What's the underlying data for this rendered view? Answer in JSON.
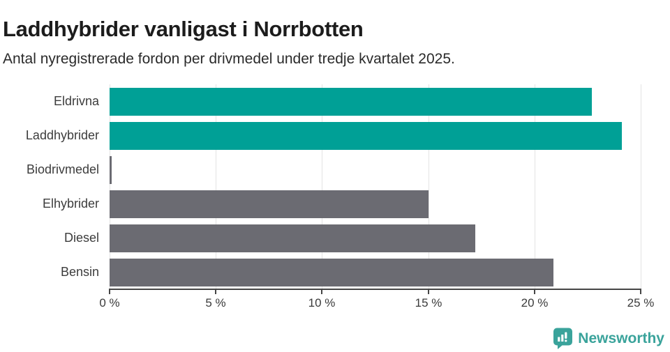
{
  "chart_data": {
    "type": "bar",
    "orientation": "horizontal",
    "title": "Laddhybrider vanligast i Norrbotten",
    "subtitle": "Antal nyregistrerade fordon per drivmedel under tredje kvartalet 2025.",
    "categories": [
      "Eldrivna",
      "Laddhybrider",
      "Biodrivmedel",
      "Elhybrider",
      "Diesel",
      "Bensin"
    ],
    "values": [
      22.7,
      24.1,
      0.1,
      15.0,
      17.2,
      20.9
    ],
    "unit": "%",
    "xlim": [
      0,
      25
    ],
    "xticks": [
      0,
      5,
      10,
      15,
      20,
      25
    ],
    "xtick_labels": [
      "0 %",
      "5 %",
      "10 %",
      "15 %",
      "20 %",
      "25 %"
    ],
    "grid": true,
    "legend": false,
    "bar_colors": [
      "#00a096",
      "#00a096",
      "#6b6b72",
      "#6b6b72",
      "#6b6b72",
      "#6b6b72"
    ]
  },
  "colors": {
    "background": "#ffffff",
    "title_text": "#1c1c1c",
    "subtitle_text": "#2a2a2a",
    "axis": "#454545",
    "gridline": "#e3e3e3",
    "label_text": "#3c3c3c",
    "highlight_bar": "#00a096",
    "default_bar": "#6b6b72",
    "brand": "#3aa39b"
  },
  "footer": {
    "brand": "Newsworthy",
    "logo_icon": "newsworthy-speech-bubble-bar-chart-icon"
  }
}
